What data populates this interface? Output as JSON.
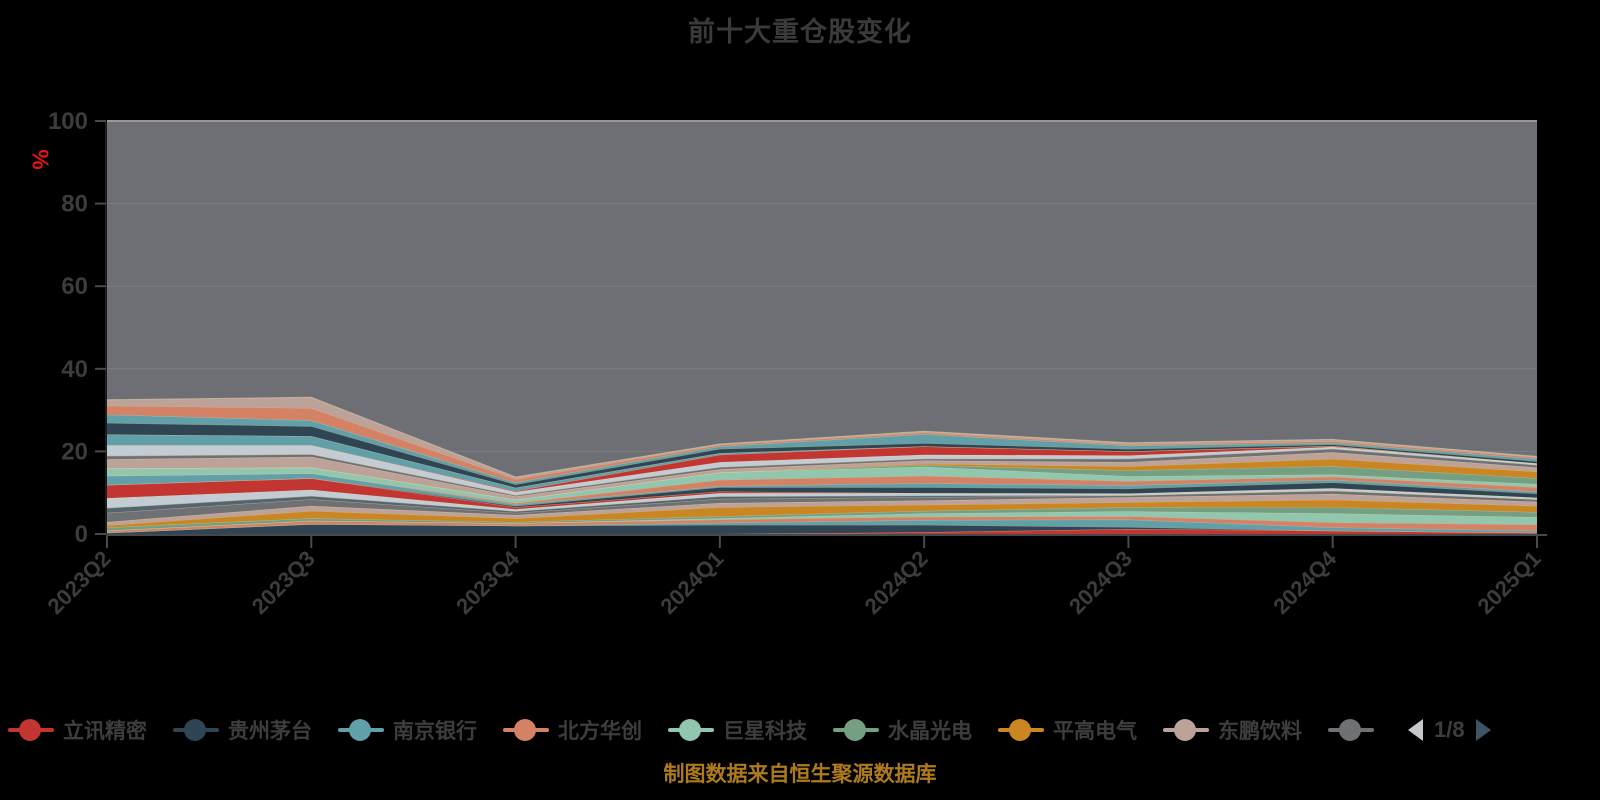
{
  "title": "前十大重仓股变化",
  "footer_note": "制图数据来自恒生聚源数据库",
  "colors": {
    "background": "#000000",
    "plot_bg": "#6d6f75",
    "grid": "rgba(255,255,255,0.10)",
    "grid_strong": "#97999d",
    "axis_line": "#46484c",
    "axis_tick": "#4a4a4a",
    "axis_label": "#3c3c3c",
    "y_name": "#e01515",
    "band_edge": "rgba(224,211,170,0.55)",
    "title": "#3a3a3a",
    "legend_text": "#3d3d3d",
    "footer": "#ad7b1e",
    "pager_prev": "#c5c8cb",
    "pager_next": "#3d5466"
  },
  "legend": {
    "items": [
      {
        "label": "立讯精密",
        "color": "#c23531"
      },
      {
        "label": "贵州茅台",
        "color": "#2f4554"
      },
      {
        "label": "南京银行",
        "color": "#61a0a8"
      },
      {
        "label": "北方华创",
        "color": "#d48265"
      },
      {
        "label": "巨星科技",
        "color": "#91c7ae"
      },
      {
        "label": "水晶光电",
        "color": "#749f83"
      },
      {
        "label": "平高电气",
        "color": "#ca8622"
      },
      {
        "label": "东鹏饮料",
        "color": "#bda29a"
      }
    ],
    "truncated_item": {
      "label_fragment": "丨",
      "color": "#6e7074"
    },
    "pager": {
      "page_label": "1/8"
    }
  },
  "chart_data": {
    "type": "area",
    "stacked": true,
    "title": "前十大重仓股变化",
    "y_axis_name": "%",
    "ylim": [
      0,
      100
    ],
    "y_ticks": [
      0,
      20,
      40,
      60,
      80,
      100
    ],
    "grid": true,
    "legend_position": "bottom",
    "x_labels": [
      "2023Q2",
      "2023Q3",
      "2023Q4",
      "2024Q1",
      "2024Q2",
      "2024Q3",
      "2024Q4",
      "2025Q1"
    ],
    "series": [
      {
        "name": "立讯精密",
        "color": "#c23531",
        "values": [
          0,
          0,
          0,
          0,
          0.4,
          1.2,
          0.8,
          0.3
        ]
      },
      {
        "name": "贵州茅台",
        "color": "#2f4554",
        "values": [
          0.3,
          2.4,
          2.0,
          2.2,
          1.8,
          0.5,
          0,
          0
        ]
      },
      {
        "name": "南京银行",
        "color": "#61a0a8",
        "values": [
          0,
          0,
          0,
          0.5,
          1.2,
          1.8,
          0.8,
          0.5
        ]
      },
      {
        "name": "北方华创",
        "color": "#d48265",
        "values": [
          0.5,
          0.8,
          0.6,
          0.8,
          0.8,
          0.8,
          1.2,
          1.5
        ]
      },
      {
        "name": "巨星科技",
        "color": "#91c7ae",
        "values": [
          0,
          0,
          0,
          0.3,
          0.8,
          1.2,
          2.2,
          1.8
        ]
      },
      {
        "name": "水晶光电",
        "color": "#749f83",
        "values": [
          0.8,
          0.6,
          0.3,
          0.5,
          0.6,
          1.0,
          1.5,
          1.2
        ]
      },
      {
        "name": "平高电气",
        "color": "#ca8622",
        "values": [
          0.5,
          1.8,
          0.9,
          2.2,
          1.5,
          1.2,
          1.8,
          1.5
        ]
      },
      {
        "name": "东鹏饮料",
        "color": "#bda29a",
        "values": [
          0.8,
          1.2,
          0.8,
          1.0,
          1.0,
          1.2,
          1.4,
          1.0
        ]
      },
      {
        "name": "",
        "color": "#6e7074",
        "values": [
          2.2,
          1.6,
          0.5,
          1.0,
          0.8,
          0.5,
          0.8,
          0.6
        ]
      },
      {
        "name": "",
        "color": "#546570",
        "values": [
          1.2,
          0.8,
          0.4,
          0.6,
          0.4,
          0,
          0,
          0
        ]
      },
      {
        "name": "",
        "color": "#c4ccd3",
        "values": [
          2.4,
          1.5,
          0.5,
          0.8,
          0.6,
          0.4,
          0.6,
          0.4
        ]
      },
      {
        "name": "",
        "color": "#c23531",
        "values": [
          3.2,
          2.8,
          0.5,
          0.4,
          0,
          0,
          0,
          0
        ]
      },
      {
        "name": "",
        "color": "#2f4554",
        "values": [
          0,
          0,
          0.3,
          1.0,
          1.4,
          1.2,
          1.4,
          1.0
        ]
      },
      {
        "name": "",
        "color": "#61a0a8",
        "values": [
          2.2,
          1.2,
          0.4,
          0.3,
          1.0,
          0.8,
          0.6,
          0.5
        ]
      },
      {
        "name": "",
        "color": "#d48265",
        "values": [
          0,
          0,
          0.3,
          1.5,
          1.8,
          1.0,
          0.8,
          1.0
        ]
      },
      {
        "name": "",
        "color": "#91c7ae",
        "values": [
          1.8,
          1.4,
          0.8,
          1.8,
          2.2,
          1.2,
          0.5,
          0.8
        ]
      },
      {
        "name": "",
        "color": "#749f83",
        "values": [
          0,
          0,
          0,
          0,
          0.4,
          1.4,
          2.0,
          1.4
        ]
      },
      {
        "name": "",
        "color": "#ca8622",
        "values": [
          0,
          0,
          0,
          0,
          0.3,
          1.0,
          1.8,
          1.6
        ]
      },
      {
        "name": "",
        "color": "#bda29a",
        "values": [
          2.2,
          2.6,
          0.8,
          0.8,
          0.8,
          1.0,
          1.6,
          1.0
        ]
      },
      {
        "name": "",
        "color": "#6e7074",
        "values": [
          0.8,
          0.6,
          0.3,
          0.5,
          0.4,
          0.8,
          0.8,
          0.6
        ]
      },
      {
        "name": "",
        "color": "#c4ccd3",
        "values": [
          2.6,
          2.2,
          0.8,
          1.2,
          1.0,
          0.8,
          0.5,
          0.4
        ]
      },
      {
        "name": "",
        "color": "#c23531",
        "values": [
          0,
          0,
          0.2,
          1.8,
          2.0,
          1.0,
          0.2,
          0
        ]
      },
      {
        "name": "",
        "color": "#61a0a8",
        "values": [
          2.6,
          2.2,
          0.8,
          0.4,
          0,
          0,
          0,
          0
        ]
      },
      {
        "name": "",
        "color": "#2f4554",
        "values": [
          2.8,
          2.4,
          0.8,
          1.0,
          0.8,
          0.6,
          0.4,
          0.5
        ]
      },
      {
        "name": "",
        "color": "#61a0a8",
        "values": [
          2.0,
          1.4,
          0.5,
          0.6,
          2.2,
          0.8,
          0.4,
          0.6
        ]
      },
      {
        "name": "",
        "color": "#d48265",
        "values": [
          2.2,
          3.0,
          0.8,
          0.4,
          0.4,
          0.3,
          0.4,
          0.4
        ]
      },
      {
        "name": "",
        "color": "#bda29a",
        "values": [
          1.4,
          2.6,
          0.5,
          0.2,
          0.3,
          0.4,
          0.4,
          0.2
        ]
      }
    ]
  }
}
